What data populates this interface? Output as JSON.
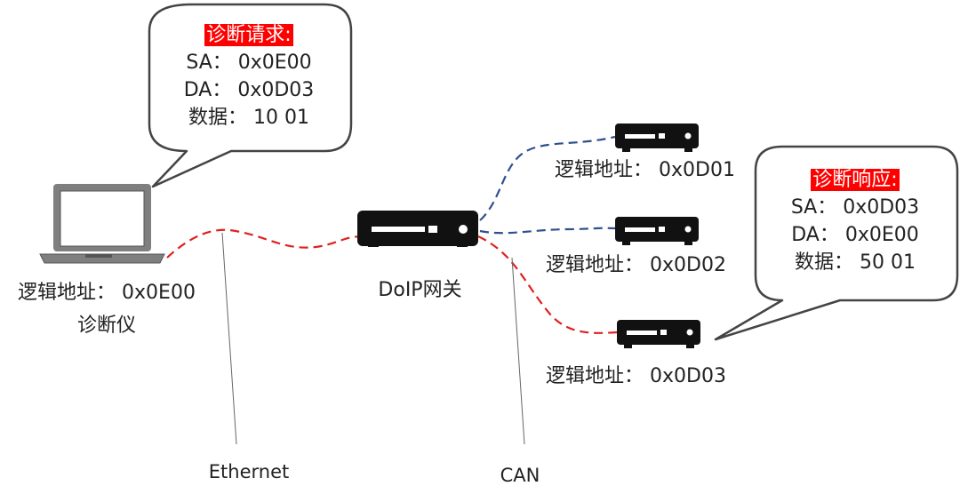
{
  "request_bubble": {
    "title": "诊断请求:",
    "sa": "SA：  0x0E00",
    "da": "DA：  0x0D03",
    "payload": "数据：  10 01"
  },
  "response_bubble": {
    "title": "诊断响应:",
    "sa": "SA：  0x0D03",
    "da": "DA：  0x0E00",
    "payload": "数据：  50 01"
  },
  "tester": {
    "address": "逻辑地址：  0x0E00",
    "name": "诊断仪"
  },
  "gateway": {
    "name": "DoIP网关"
  },
  "ecus": [
    {
      "address": "逻辑地址：  0x0D01"
    },
    {
      "address": "逻辑地址：  0x0D02"
    },
    {
      "address": "逻辑地址：  0x0D03"
    }
  ],
  "bus_labels": {
    "ethernet": "Ethernet",
    "can": "CAN"
  },
  "colors": {
    "highlight": "#ff0000",
    "ethernet_line": "#e02020",
    "can_line": "#2f4f8f",
    "device": "#111111"
  },
  "icons": [
    "laptop-icon",
    "gateway-device-icon",
    "ecu-device-icon"
  ]
}
